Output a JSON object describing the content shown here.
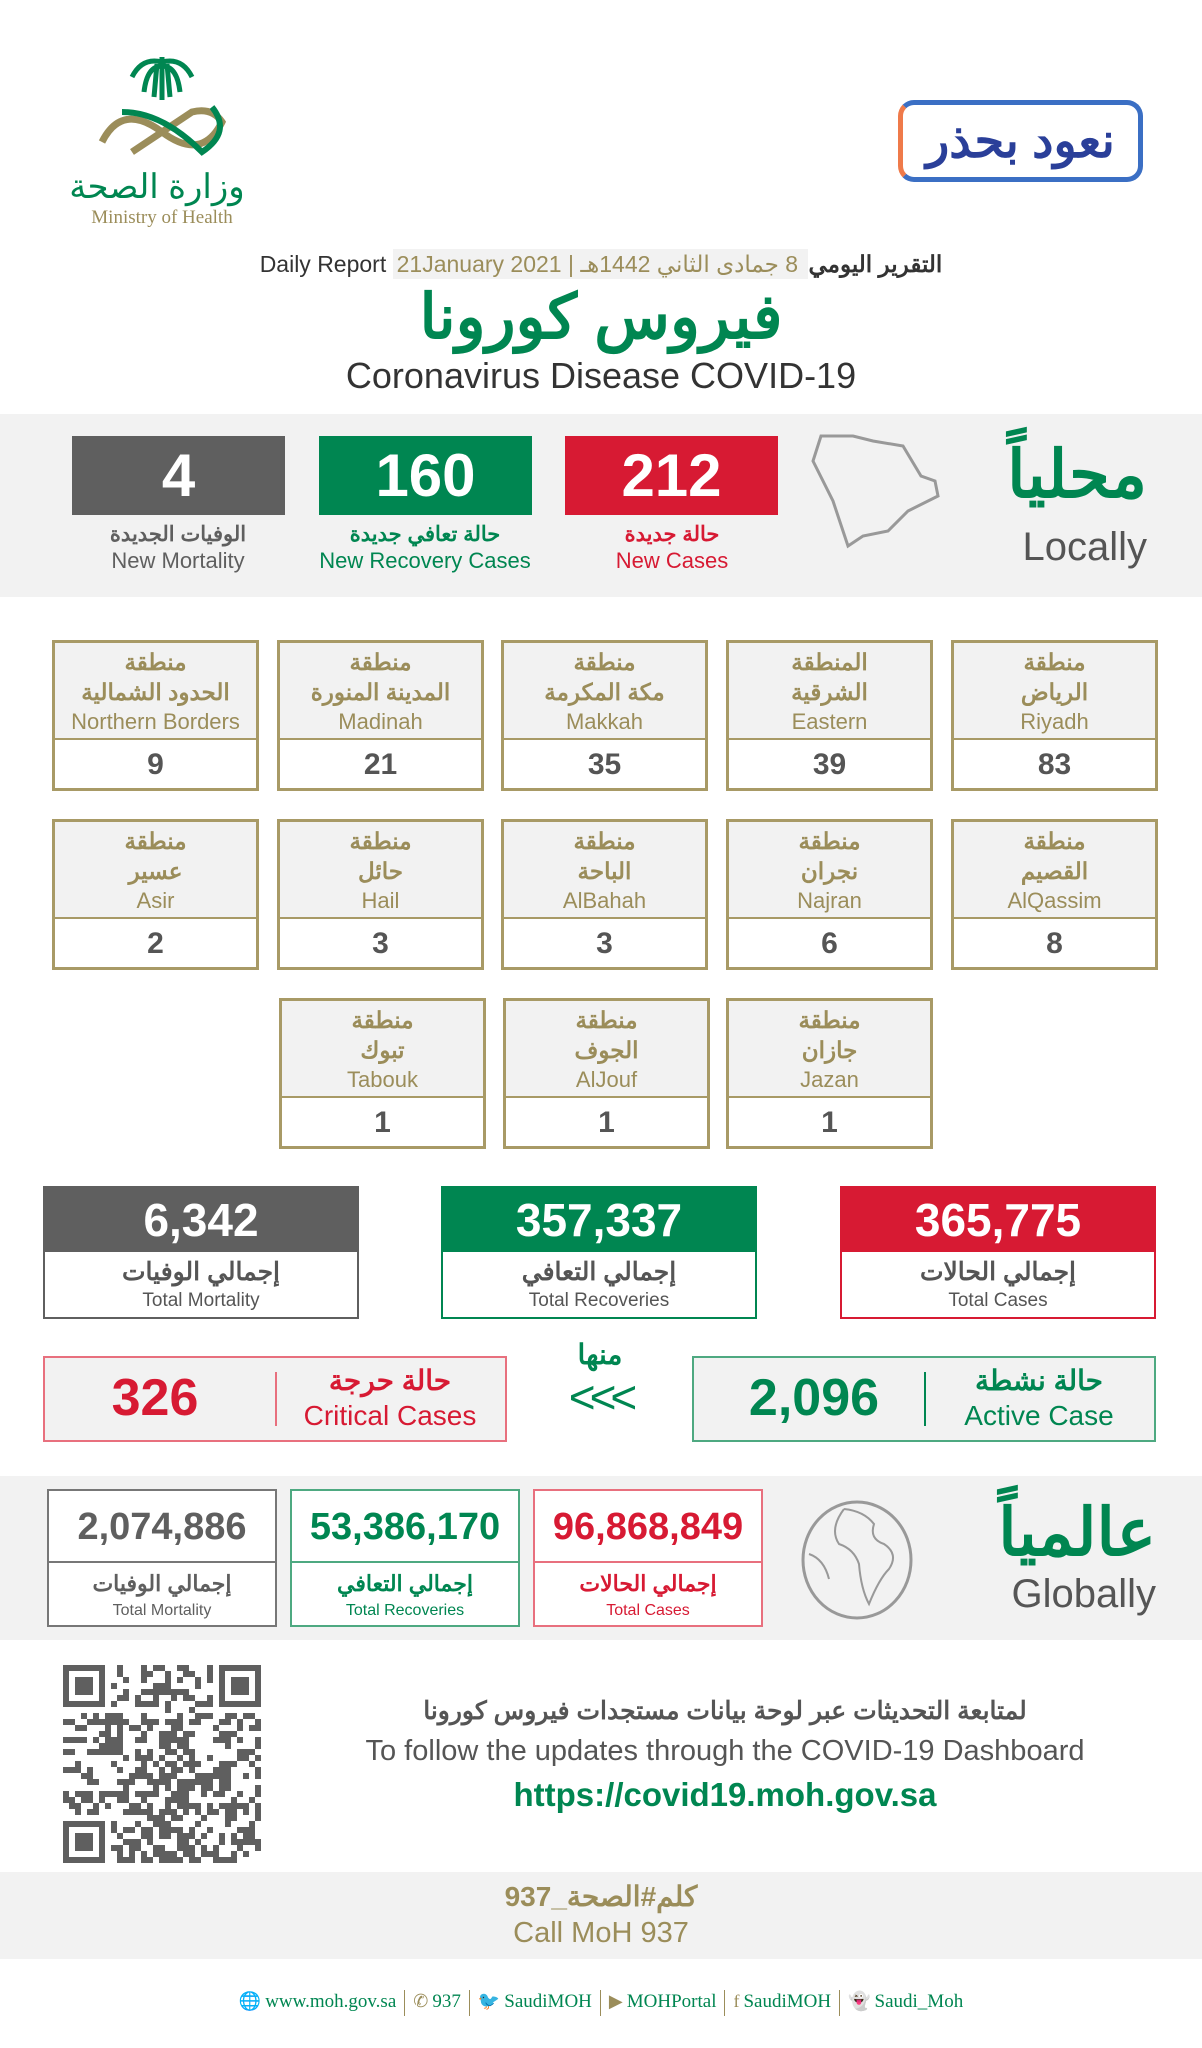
{
  "header": {
    "moh_logo": {
      "arabic": "وزارة الصحة",
      "english": "Ministry of Health"
    },
    "campaign_logo": "نعود بحذر",
    "report_label_en": "Daily Report",
    "date_gregorian": "21January 2021",
    "date_hijri": "8 جمادى الثاني 1442هـ",
    "report_label_ar": "التقرير اليومي",
    "title_ar": "فيروس كورونا",
    "title_en": "Coronavirus Disease COVID-19"
  },
  "locally": {
    "title_ar": "محلياً",
    "title_en": "Locally",
    "new_cases": {
      "value": "212",
      "ar": "حالة جديدة",
      "en": "New Cases"
    },
    "new_recoveries": {
      "value": "160",
      "ar": "حالة تعافي جديدة",
      "en": "New Recovery Cases"
    },
    "new_mortality": {
      "value": "4",
      "ar": "الوفيات الجديدة",
      "en": "New Mortality"
    }
  },
  "regions": [
    {
      "ar1": "منطقة",
      "ar2": "الرياض",
      "en": "Riyadh",
      "value": "83"
    },
    {
      "ar1": "المنطقة",
      "ar2": "الشرقية",
      "en": "Eastern",
      "value": "39"
    },
    {
      "ar1": "منطقة",
      "ar2": "مكة المكرمة",
      "en": "Makkah",
      "value": "35"
    },
    {
      "ar1": "منطقة",
      "ar2": "المدينة المنورة",
      "en": "Madinah",
      "value": "21"
    },
    {
      "ar1": "منطقة",
      "ar2": "الحدود الشمالية",
      "en": "Northern Borders",
      "value": "9"
    },
    {
      "ar1": "منطقة",
      "ar2": "القصيم",
      "en": "AlQassim",
      "value": "8"
    },
    {
      "ar1": "منطقة",
      "ar2": "نجران",
      "en": "Najran",
      "value": "6"
    },
    {
      "ar1": "منطقة",
      "ar2": "الباحة",
      "en": "AlBahah",
      "value": "3"
    },
    {
      "ar1": "منطقة",
      "ar2": "حائل",
      "en": "Hail",
      "value": "3"
    },
    {
      "ar1": "منطقة",
      "ar2": "عسير",
      "en": "Asir",
      "value": "2"
    },
    {
      "ar1": "منطقة",
      "ar2": "جازان",
      "en": "Jazan",
      "value": "1"
    },
    {
      "ar1": "منطقة",
      "ar2": "الجوف",
      "en": "AlJouf",
      "value": "1"
    },
    {
      "ar1": "منطقة",
      "ar2": "تبوك",
      "en": "Tabouk",
      "value": "1"
    }
  ],
  "totals": {
    "cases": {
      "value": "365,775",
      "ar": "إجمالي الحالات",
      "en": "Total Cases"
    },
    "recoveries": {
      "value": "357,337",
      "ar": "إجمالي التعافي",
      "en": "Total Recoveries"
    },
    "mortality": {
      "value": "6,342",
      "ar": "إجمالي الوفيات",
      "en": "Total Mortality"
    }
  },
  "of_which": "منها",
  "arrows": "<<<",
  "active": {
    "value": "2,096",
    "ar": "حالة نشطة",
    "en": "Active Case"
  },
  "critical": {
    "value": "326",
    "ar": "حالة حرجة",
    "en": "Critical Cases"
  },
  "globally": {
    "title_ar": "عالمياً",
    "title_en": "Globally",
    "cases": {
      "value": "96,868,849",
      "ar": "إجمالي الحالات",
      "en": "Total Cases"
    },
    "recoveries": {
      "value": "53,386,170",
      "ar": "إجمالي التعافي",
      "en": "Total Recoveries"
    },
    "mortality": {
      "value": "2,074,886",
      "ar": "إجمالي الوفيات",
      "en": "Total Mortality"
    }
  },
  "dashboard": {
    "ar": "لمتابعة التحديثات عبر لوحة بيانات مستجدات فيروس كورونا",
    "en": "To follow the updates through the COVID-19 Dashboard",
    "url": "https://covid19.moh.gov.sa"
  },
  "call": {
    "ar": "كلم#الصحة_937",
    "en": "Call MoH 937"
  },
  "social": [
    {
      "icon": "globe-icon",
      "glyph": "🌐",
      "label": "www.moh.gov.sa"
    },
    {
      "icon": "phone-icon",
      "glyph": "✆",
      "label": "937"
    },
    {
      "icon": "twitter-icon",
      "glyph": "🐦",
      "label": "SaudiMOH"
    },
    {
      "icon": "youtube-icon",
      "glyph": "▶",
      "label": "MOHPortal"
    },
    {
      "icon": "facebook-icon",
      "glyph": "f",
      "label": "SaudiMOH"
    },
    {
      "icon": "snapchat-icon",
      "glyph": "👻",
      "label": "Saudi_Moh"
    }
  ],
  "colors": {
    "red": "#d71a33",
    "green": "#008651",
    "gray": "#5f5f5f",
    "gold": "#9b8d5a",
    "band": "#f2f2f2"
  }
}
